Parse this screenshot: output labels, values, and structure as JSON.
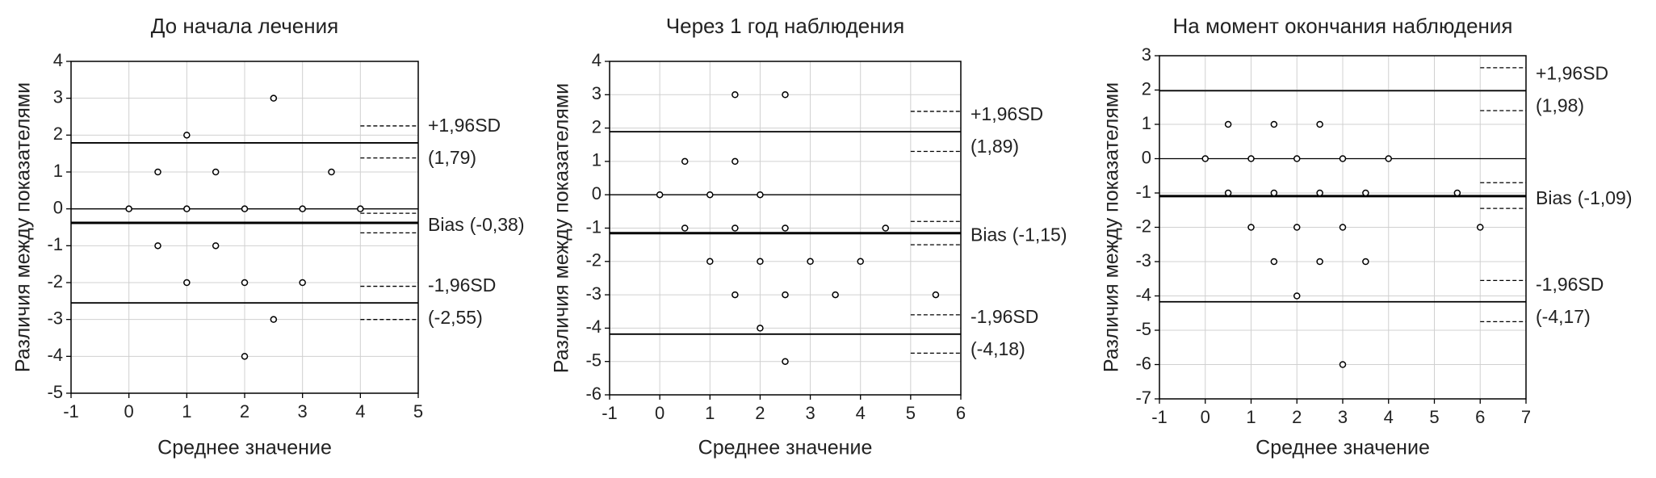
{
  "chart_data": [
    {
      "type": "scatter",
      "title": "До начала лечения",
      "xlabel": "Среднее значение",
      "ylabel": "Различия между показателями",
      "x": [
        0,
        0.5,
        0.5,
        1,
        1,
        1,
        1.5,
        1.5,
        2,
        2,
        2,
        2.5,
        2.5,
        3,
        3,
        3.5,
        4
      ],
      "y": [
        0,
        1,
        -1,
        2,
        0,
        -2,
        1,
        -1,
        0,
        -2,
        -4,
        3,
        -3,
        0,
        -2,
        1,
        0
      ],
      "xlim": [
        -1,
        5
      ],
      "xticks": [
        -1,
        0,
        1,
        2,
        3,
        4,
        5
      ],
      "ylim": [
        -5,
        4
      ],
      "yticks": [
        -5,
        -4,
        -3,
        -2,
        -1,
        0,
        1,
        2,
        3,
        4
      ],
      "grid": true,
      "zero_line": true,
      "color": "#000000",
      "lines": [
        {
          "name": "+1,96SD",
          "value": 1.79,
          "value_label": "(1,79)",
          "ci": [
            1.38,
            2.25
          ]
        },
        {
          "name": "Bias",
          "value": -0.38,
          "value_label": "(-0,38)",
          "ci": [
            -0.65,
            -0.12
          ]
        },
        {
          "name": "-1,96SD",
          "value": -2.55,
          "value_label": "(-2,55)",
          "ci": [
            -3.0,
            -2.1
          ]
        }
      ]
    },
    {
      "type": "scatter",
      "title": "Через 1 год наблюдения",
      "xlabel": "Среднее значение",
      "ylabel": "Различия между показателями",
      "x": [
        0,
        0.5,
        0.5,
        1,
        1,
        1.5,
        1.5,
        1.5,
        1.5,
        2,
        2,
        2,
        2.5,
        2.5,
        2.5,
        2.5,
        3,
        3.5,
        4,
        4.5,
        5.5
      ],
      "y": [
        0,
        1,
        -1,
        0,
        -2,
        3,
        1,
        -1,
        -3,
        0,
        -2,
        -4,
        3,
        -1,
        -3,
        -5,
        -2,
        -3,
        -2,
        -1,
        -3
      ],
      "xlim": [
        -1,
        6
      ],
      "xticks": [
        -1,
        0,
        1,
        2,
        3,
        4,
        5,
        6
      ],
      "ylim": [
        -6,
        4
      ],
      "yticks": [
        -6,
        -5,
        -4,
        -3,
        -2,
        -1,
        0,
        1,
        2,
        3,
        4
      ],
      "grid": true,
      "zero_line": true,
      "color": "#000000",
      "lines": [
        {
          "name": "+1,96SD",
          "value": 1.89,
          "value_label": "(1,89)",
          "ci": [
            1.3,
            2.5
          ]
        },
        {
          "name": "Bias",
          "value": -1.15,
          "value_label": "(-1,15)",
          "ci": [
            -1.5,
            -0.8
          ]
        },
        {
          "name": "-1,96SD",
          "value": -4.18,
          "value_label": "(-4,18)",
          "ci": [
            -4.75,
            -3.6
          ]
        }
      ]
    },
    {
      "type": "scatter",
      "title": "На момент окончания наблюдения",
      "xlabel": "Среднее значение",
      "ylabel": "Различия между показателями",
      "x": [
        0,
        0.5,
        0.5,
        1,
        1,
        1.5,
        1.5,
        1.5,
        2,
        2,
        2,
        2.5,
        2.5,
        2.5,
        3,
        3,
        3,
        3.5,
        3.5,
        4,
        5.5,
        6
      ],
      "y": [
        0,
        1,
        -1,
        0,
        -2,
        1,
        -1,
        -3,
        0,
        -2,
        -4,
        1,
        -1,
        -3,
        0,
        -2,
        -6,
        -1,
        -3,
        0,
        -1,
        -2
      ],
      "xlim": [
        -1,
        7
      ],
      "xticks": [
        -1,
        0,
        1,
        2,
        3,
        4,
        5,
        6,
        7
      ],
      "ylim": [
        -7,
        3
      ],
      "yticks": [
        -7,
        -6,
        -5,
        -4,
        -3,
        -2,
        -1,
        0,
        1,
        2,
        3
      ],
      "grid": true,
      "zero_line": true,
      "color": "#000000",
      "lines": [
        {
          "name": "+1,96SD",
          "value": 1.98,
          "value_label": "(1,98)",
          "ci": [
            1.4,
            2.65
          ]
        },
        {
          "name": "Bias",
          "value": -1.09,
          "value_label": "(-1,09)",
          "ci": [
            -1.45,
            -0.7
          ]
        },
        {
          "name": "-1,96SD",
          "value": -4.17,
          "value_label": "(-4,17)",
          "ci": [
            -4.75,
            -3.55
          ]
        }
      ]
    }
  ]
}
